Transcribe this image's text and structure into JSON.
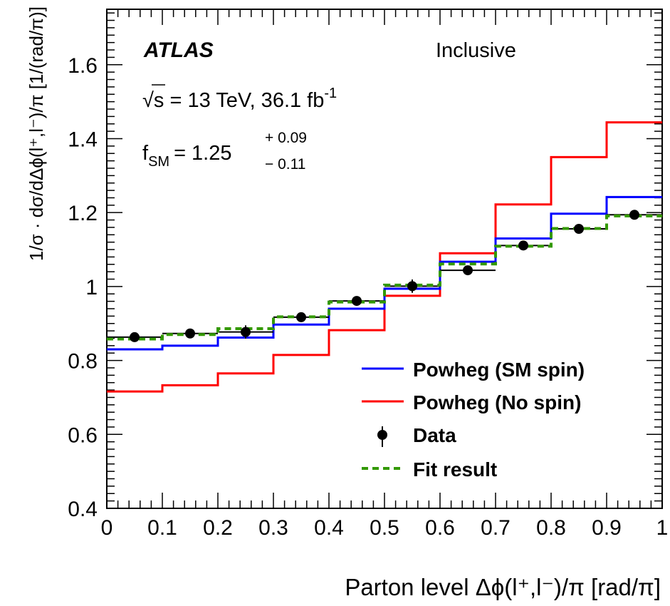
{
  "chart_data": {
    "type": "step",
    "experiment": "ATLAS",
    "region": "Inclusive",
    "energy_lumi": {
      "sqrt": "√",
      "main": "s = 13 TeV, 36.1 fb",
      "sup": "-1"
    },
    "fit_label": {
      "f": "f",
      "sub": "SM",
      "eq": "= 1.25",
      "up": "+ 0.09",
      "down": "− 0.11"
    },
    "xlabel": "Parton level Δϕ(l⁺,l⁻)/π [rad/π]",
    "ylabel": "1/σ · dσ/dΔϕ(l⁺,l⁻)/π [1/(rad/π)]",
    "xlim": [
      0,
      1
    ],
    "ylim": [
      0.4,
      1.75
    ],
    "x_ticks": [
      "0",
      "0.1",
      "0.2",
      "0.3",
      "0.4",
      "0.5",
      "0.6",
      "0.7",
      "0.8",
      "0.9",
      "1"
    ],
    "y_ticks": [
      "0.4",
      "0.6",
      "0.8",
      "1",
      "1.2",
      "1.4",
      "1.6"
    ],
    "bin_edges": [
      0,
      0.1,
      0.2,
      0.3,
      0.4,
      0.5,
      0.6,
      0.7,
      0.8,
      0.9,
      1.0
    ],
    "series": [
      {
        "name": "Powheg (SM spin)",
        "style": "step",
        "color": "#0000ff",
        "values": [
          0.83,
          0.84,
          0.862,
          0.897,
          0.94,
          0.994,
          1.067,
          1.13,
          1.197,
          1.242
        ]
      },
      {
        "name": "Powheg (No spin)",
        "style": "step",
        "color": "#ff0000",
        "values": [
          0.716,
          0.733,
          0.765,
          0.815,
          0.882,
          0.975,
          1.09,
          1.222,
          1.35,
          1.444
        ]
      },
      {
        "name": "Data",
        "style": "points",
        "color": "#000000",
        "x": [
          0.05,
          0.15,
          0.25,
          0.35,
          0.45,
          0.55,
          0.65,
          0.75,
          0.85,
          0.95
        ],
        "values": [
          0.863,
          0.873,
          0.877,
          0.917,
          0.961,
          1.001,
          1.044,
          1.111,
          1.156,
          1.194
        ],
        "errors": [
          0.008,
          0.008,
          0.018,
          0.008,
          0.008,
          0.018,
          0.008,
          0.008,
          0.008,
          0.008
        ]
      },
      {
        "name": "Fit result",
        "style": "dashed-step",
        "color": "#339900",
        "values": [
          0.858,
          0.87,
          0.886,
          0.918,
          0.958,
          1.004,
          1.061,
          1.109,
          1.157,
          1.191
        ]
      }
    ],
    "legend_placement": "bottom-right",
    "grid": false
  }
}
